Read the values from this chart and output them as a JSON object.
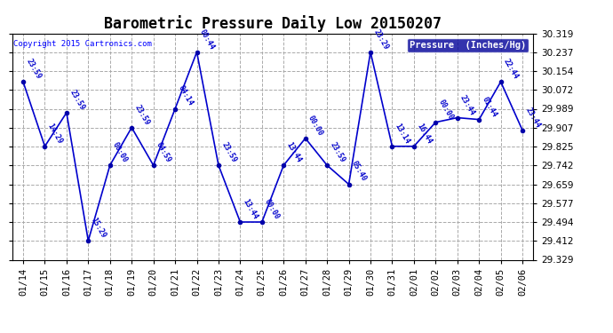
{
  "title": "Barometric Pressure Daily Low 20150207",
  "copyright_text": "Copyright 2015 Cartronics.com",
  "legend_label": "Pressure  (Inches/Hg)",
  "line_color": "#0000CC",
  "marker_color": "#0000AA",
  "background_color": "#ffffff",
  "grid_color": "#aaaaaa",
  "dates": [
    "01/14",
    "01/15",
    "01/16",
    "01/17",
    "01/18",
    "01/19",
    "01/20",
    "01/21",
    "01/22",
    "01/23",
    "01/24",
    "01/25",
    "01/26",
    "01/27",
    "01/28",
    "01/29",
    "01/30",
    "01/31",
    "02/01",
    "02/02",
    "02/03",
    "02/04",
    "02/05",
    "02/06"
  ],
  "values": [
    30.107,
    29.825,
    29.972,
    29.412,
    29.742,
    29.907,
    29.742,
    29.989,
    30.237,
    29.742,
    29.494,
    29.494,
    29.742,
    29.86,
    29.742,
    29.659,
    30.237,
    29.825,
    29.825,
    29.93,
    29.95,
    29.942,
    30.107,
    29.895
  ],
  "time_labels": [
    "23:59",
    "14:29",
    "23:59",
    "15:29",
    "00:00",
    "23:59",
    "04:59",
    "04:14",
    "00:44",
    "23:59",
    "13:44",
    "00:00",
    "13:44",
    "00:00",
    "23:59",
    "05:40",
    "23:29",
    "13:14",
    "16:44",
    "00:00",
    "23:44",
    "01:44",
    "22:44",
    "23:44"
  ],
  "ylim_min": 29.329,
  "ylim_max": 30.319,
  "yticks": [
    29.329,
    29.412,
    29.494,
    29.577,
    29.659,
    29.742,
    29.825,
    29.907,
    29.989,
    30.072,
    30.154,
    30.237,
    30.319
  ],
  "title_fontsize": 12,
  "tick_fontsize": 7.5,
  "legend_bg": "#000099",
  "legend_fg": "#ffffff"
}
